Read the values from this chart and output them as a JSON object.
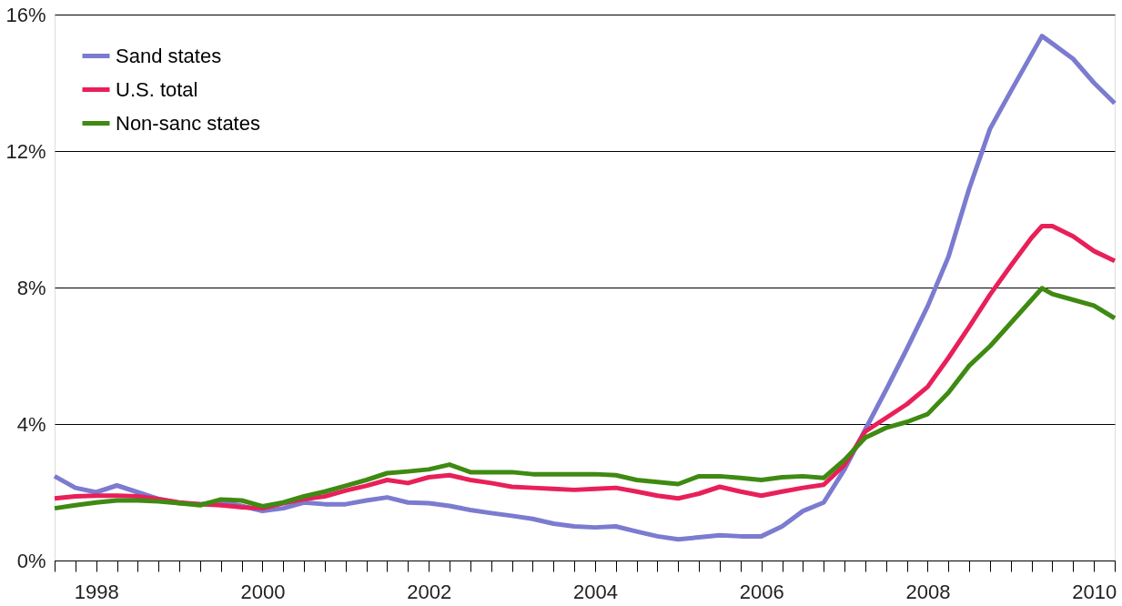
{
  "chart_data": {
    "type": "line",
    "x": [
      1998.0,
      1998.25,
      1998.5,
      1998.75,
      1999.0,
      1999.25,
      1999.5,
      1999.75,
      2000.0,
      2000.25,
      2000.5,
      2000.75,
      2001.0,
      2001.25,
      2001.5,
      2001.75,
      2002.0,
      2002.25,
      2002.5,
      2002.75,
      2003.0,
      2003.25,
      2003.5,
      2003.75,
      2004.0,
      2004.25,
      2004.5,
      2004.75,
      2005.0,
      2005.25,
      2005.5,
      2005.75,
      2006.0,
      2006.25,
      2006.5,
      2006.75,
      2007.0,
      2007.25,
      2007.5,
      2007.75,
      2008.0,
      2008.25,
      2008.5,
      2008.75,
      2009.0,
      2009.25,
      2009.5,
      2009.75,
      2009.875,
      2010.0,
      2010.25,
      2010.5,
      2010.75
    ],
    "series": [
      {
        "name": "Sand states",
        "color": "#7b7bd0",
        "values": [
          2.47,
          2.13,
          2.0,
          2.2,
          2.0,
          1.8,
          1.68,
          1.65,
          1.73,
          1.6,
          1.45,
          1.53,
          1.7,
          1.65,
          1.65,
          1.76,
          1.85,
          1.7,
          1.68,
          1.6,
          1.48,
          1.39,
          1.31,
          1.22,
          1.08,
          1.0,
          0.97,
          1.0,
          0.85,
          0.71,
          0.62,
          0.68,
          0.74,
          0.71,
          0.71,
          1.0,
          1.45,
          1.7,
          2.67,
          3.84,
          5.0,
          6.2,
          7.45,
          8.9,
          10.9,
          12.65,
          13.75,
          14.83,
          15.37,
          15.15,
          14.7,
          14.0,
          13.4
        ]
      },
      {
        "name": "U.S. total",
        "color": "#e8205a",
        "values": [
          1.82,
          1.88,
          1.9,
          1.9,
          1.88,
          1.8,
          1.7,
          1.65,
          1.62,
          1.56,
          1.53,
          1.68,
          1.8,
          1.88,
          2.05,
          2.19,
          2.36,
          2.27,
          2.44,
          2.5,
          2.36,
          2.27,
          2.16,
          2.13,
          2.1,
          2.07,
          2.1,
          2.13,
          2.02,
          1.9,
          1.82,
          1.96,
          2.16,
          2.02,
          1.9,
          2.02,
          2.13,
          2.22,
          2.8,
          3.78,
          4.18,
          4.58,
          5.09,
          5.94,
          6.85,
          7.79,
          8.64,
          9.46,
          9.8,
          9.8,
          9.5,
          9.07,
          8.78
        ]
      },
      {
        "name": "Non-sanc states",
        "color": "#3f8a12",
        "values": [
          1.53,
          1.62,
          1.7,
          1.76,
          1.76,
          1.73,
          1.68,
          1.62,
          1.79,
          1.76,
          1.59,
          1.7,
          1.88,
          2.02,
          2.19,
          2.36,
          2.56,
          2.61,
          2.67,
          2.81,
          2.59,
          2.59,
          2.59,
          2.53,
          2.53,
          2.53,
          2.53,
          2.5,
          2.36,
          2.3,
          2.24,
          2.47,
          2.47,
          2.42,
          2.36,
          2.44,
          2.47,
          2.42,
          2.95,
          3.6,
          3.89,
          4.06,
          4.29,
          4.92,
          5.71,
          6.28,
          6.96,
          7.64,
          7.98,
          7.81,
          7.64,
          7.47,
          7.1
        ]
      }
    ],
    "xlim": [
      1998.0,
      2010.75
    ],
    "xticks": [
      {
        "value": 1998.0,
        "label": null
      },
      {
        "value": 1998.25,
        "label": null
      },
      {
        "value": 1998.5,
        "label": "1998"
      },
      {
        "value": 1998.75,
        "label": null
      },
      {
        "value": 1999.0,
        "label": null
      },
      {
        "value": 1999.25,
        "label": null
      },
      {
        "value": 1999.5,
        "label": null
      },
      {
        "value": 1999.75,
        "label": null
      },
      {
        "value": 2000.0,
        "label": null
      },
      {
        "value": 2000.25,
        "label": null
      },
      {
        "value": 2000.5,
        "label": "2000"
      },
      {
        "value": 2000.75,
        "label": null
      },
      {
        "value": 2001.0,
        "label": null
      },
      {
        "value": 2001.25,
        "label": null
      },
      {
        "value": 2001.5,
        "label": null
      },
      {
        "value": 2001.75,
        "label": null
      },
      {
        "value": 2002.0,
        "label": null
      },
      {
        "value": 2002.25,
        "label": null
      },
      {
        "value": 2002.5,
        "label": "2002"
      },
      {
        "value": 2002.75,
        "label": null
      },
      {
        "value": 2003.0,
        "label": null
      },
      {
        "value": 2003.25,
        "label": null
      },
      {
        "value": 2003.5,
        "label": null
      },
      {
        "value": 2003.75,
        "label": null
      },
      {
        "value": 2004.0,
        "label": null
      },
      {
        "value": 2004.25,
        "label": null
      },
      {
        "value": 2004.5,
        "label": "2004"
      },
      {
        "value": 2004.75,
        "label": null
      },
      {
        "value": 2005.0,
        "label": null
      },
      {
        "value": 2005.25,
        "label": null
      },
      {
        "value": 2005.5,
        "label": null
      },
      {
        "value": 2005.75,
        "label": null
      },
      {
        "value": 2006.0,
        "label": null
      },
      {
        "value": 2006.25,
        "label": null
      },
      {
        "value": 2006.5,
        "label": "2006"
      },
      {
        "value": 2006.75,
        "label": null
      },
      {
        "value": 2007.0,
        "label": null
      },
      {
        "value": 2007.25,
        "label": null
      },
      {
        "value": 2007.5,
        "label": null
      },
      {
        "value": 2007.75,
        "label": null
      },
      {
        "value": 2008.0,
        "label": null
      },
      {
        "value": 2008.25,
        "label": null
      },
      {
        "value": 2008.5,
        "label": "2008"
      },
      {
        "value": 2008.75,
        "label": null
      },
      {
        "value": 2009.0,
        "label": null
      },
      {
        "value": 2009.25,
        "label": null
      },
      {
        "value": 2009.5,
        "label": null
      },
      {
        "value": 2009.75,
        "label": null
      },
      {
        "value": 2010.0,
        "label": null
      },
      {
        "value": 2010.25,
        "label": null
      },
      {
        "value": 2010.5,
        "label": "2010"
      },
      {
        "value": 2010.75,
        "label": null
      }
    ],
    "ylim": [
      0,
      16
    ],
    "yticks": [
      {
        "value": 0,
        "label": "0%"
      },
      {
        "value": 4,
        "label": "4%"
      },
      {
        "value": 8,
        "label": "8%"
      },
      {
        "value": 12,
        "label": "12%"
      },
      {
        "value": 16,
        "label": "16%"
      }
    ],
    "grid": "y",
    "legend": "top left",
    "line_style": "solid",
    "marker": "none"
  }
}
